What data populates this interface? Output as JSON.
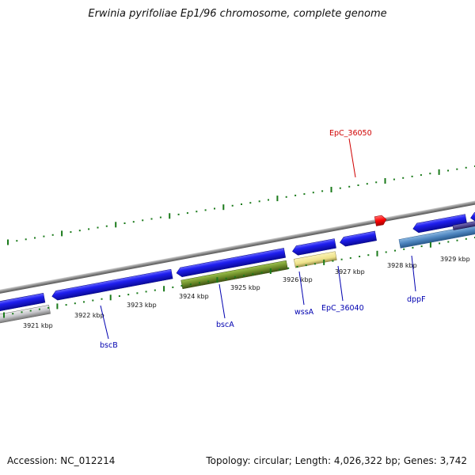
{
  "title": "Erwinia pyrifoliae Ep1/96 chromosome, complete genome",
  "footer": {
    "accession": "Accession: NC_012214",
    "stats": "Topology: circular; Length: 4,026,322 bp; Genes: 3,742"
  },
  "colors": {
    "cds_blue": "#1f1ff0",
    "highlight_red": "#ff0000",
    "label_blue": "#0000b0",
    "label_red": "#d00000",
    "scale_green": "#1a7a1a",
    "backbone_gray": "#808080",
    "olive_gene": "#6f8f2a",
    "yellow_gene": "#eee28a",
    "steel_gene": "#4f86c0",
    "purple_gene": "#4a3f8f",
    "silver_gene": "#c8c8cc"
  },
  "scale": {
    "unit": "kbp",
    "ticks": [
      "3921 kbp",
      "3922 kbp",
      "3923 kbp",
      "3924 kbp",
      "3925 kbp",
      "3926 kbp",
      "3927 kbp",
      "3928 kbp",
      "3929 kbp"
    ]
  },
  "gene_labels": [
    {
      "id": "bscB",
      "text": "bscB",
      "color": "blue"
    },
    {
      "id": "bscA",
      "text": "bscA",
      "color": "blue"
    },
    {
      "id": "wssA",
      "text": "wssA",
      "color": "blue"
    },
    {
      "id": "EpC_36040",
      "text": "EpC_36040",
      "color": "blue"
    },
    {
      "id": "dppF",
      "text": "dppF",
      "color": "blue"
    },
    {
      "id": "EpC_36050",
      "text": "EpC_36050",
      "color": "red"
    }
  ]
}
